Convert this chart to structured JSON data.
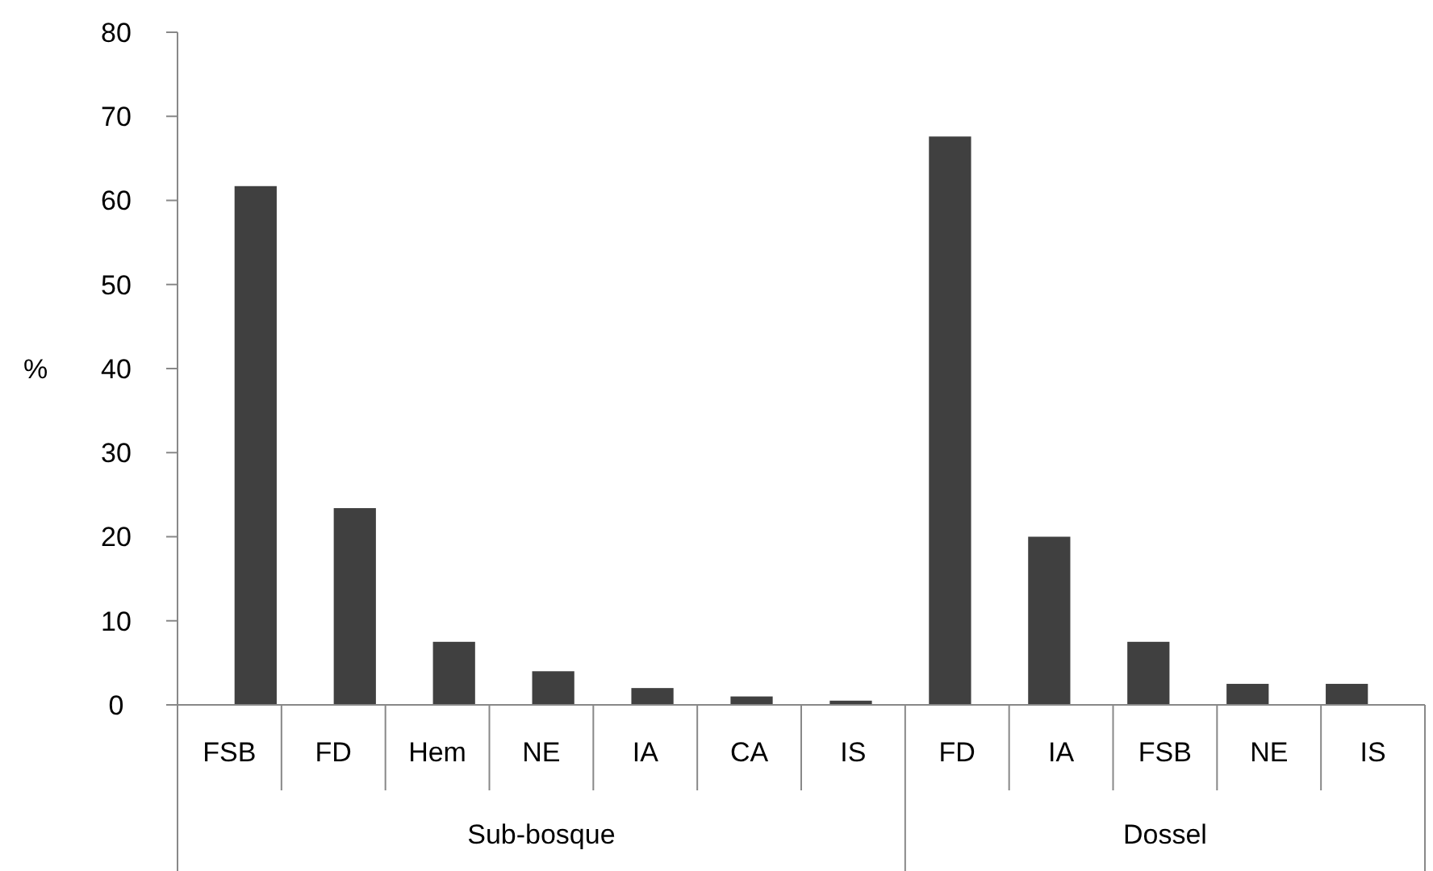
{
  "chart_data": {
    "type": "bar",
    "ylabel": "%",
    "categories": [
      "FSB",
      "FD",
      "Hem",
      "NE",
      "IA",
      "CA",
      "IS",
      "FD",
      "IA",
      "FSB",
      "NE",
      "IS"
    ],
    "values": [
      61.7,
      23.4,
      7.5,
      4.0,
      2.0,
      1.0,
      0.5,
      67.6,
      20.0,
      7.5,
      2.5,
      2.5
    ],
    "color": "#404040",
    "ylim": [
      0,
      80
    ],
    "yticks": [
      0,
      10,
      20,
      30,
      40,
      50,
      60,
      70,
      80
    ],
    "annotations": [
      "Sub-bosque",
      "Dossel"
    ]
  }
}
